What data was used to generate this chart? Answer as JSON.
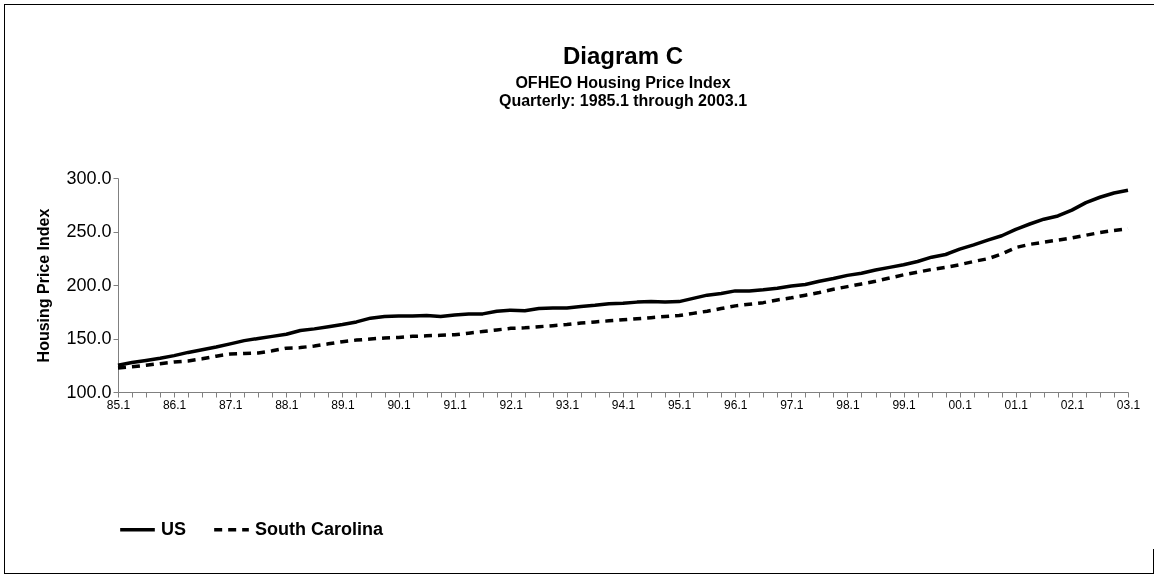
{
  "chart_data": {
    "type": "line",
    "title": "Diagram C",
    "subtitle": "OFHEO Housing Price Index",
    "annotations": [
      "Quarterly: 1985.1 through 2003.1"
    ],
    "ylabel": "Housing Price Index",
    "categories": [
      "85.1",
      null,
      null,
      null,
      "86.1",
      null,
      null,
      null,
      "87.1",
      null,
      null,
      null,
      "88.1",
      null,
      null,
      null,
      "89.1",
      null,
      null,
      null,
      "90.1",
      null,
      null,
      null,
      "91.1",
      null,
      null,
      null,
      "92.1",
      null,
      null,
      null,
      "93.1",
      null,
      null,
      null,
      "94.1",
      null,
      null,
      null,
      "95.1",
      null,
      null,
      null,
      "96.1",
      null,
      null,
      null,
      "97.1",
      null,
      null,
      null,
      "98.1",
      null,
      null,
      null,
      "99.1",
      null,
      null,
      null,
      "00.1",
      null,
      null,
      null,
      "01.1",
      null,
      null,
      null,
      "02.1",
      null,
      null,
      null,
      "03.1"
    ],
    "ylim": [
      100,
      300
    ],
    "yticks": [
      {
        "value": 100,
        "label": "100.0"
      },
      {
        "value": 150,
        "label": "150.0"
      },
      {
        "value": 200,
        "label": "200.0"
      },
      {
        "value": 250,
        "label": "250.0"
      },
      {
        "value": 300,
        "label": "300.0"
      }
    ],
    "legend": "bottom",
    "marker": "none",
    "series": [
      {
        "name": "US",
        "color": "#000000",
        "line_style": "solid",
        "values": [
          125,
          127.5,
          129.5,
          131.5,
          134,
          137,
          139.5,
          142,
          145,
          148,
          150,
          152,
          154,
          157.5,
          159,
          161,
          163,
          165.5,
          169,
          170.5,
          171,
          171,
          171.5,
          170.5,
          172,
          173,
          173,
          175.5,
          176.5,
          176,
          178,
          178.5,
          178.5,
          180,
          181,
          182.5,
          183,
          184,
          184.5,
          184,
          184.5,
          187.5,
          190.5,
          192,
          194.5,
          194.5,
          195.5,
          197,
          199,
          200.5,
          203.5,
          206,
          209,
          211,
          214,
          216.5,
          219,
          222,
          226,
          228.5,
          233.5,
          237.5,
          242,
          246,
          252,
          257,
          261.5,
          264.5,
          270,
          277,
          282,
          286,
          288.5
        ]
      },
      {
        "name": "South Carolina",
        "color": "#000000",
        "line_style": "dashed",
        "values": [
          122.5,
          123.5,
          125,
          126.5,
          128,
          129,
          131,
          133.5,
          135.5,
          136,
          136.5,
          138.5,
          141,
          141.5,
          143,
          145,
          147,
          148.5,
          149.5,
          150.5,
          151,
          152,
          152.5,
          153,
          153.5,
          155,
          156.5,
          158,
          159.5,
          160,
          161,
          162,
          163,
          164.5,
          165.5,
          166.5,
          167.5,
          168.5,
          169.5,
          170.5,
          171.5,
          173.5,
          175.5,
          178,
          180.5,
          182,
          183.5,
          186,
          188,
          190.5,
          193,
          196,
          198.5,
          201,
          203.5,
          206.5,
          209.5,
          212,
          214.5,
          216.5,
          219,
          222,
          224.5,
          229,
          235,
          238,
          240,
          242,
          244,
          246.5,
          249,
          251,
          252.5
        ]
      }
    ]
  }
}
